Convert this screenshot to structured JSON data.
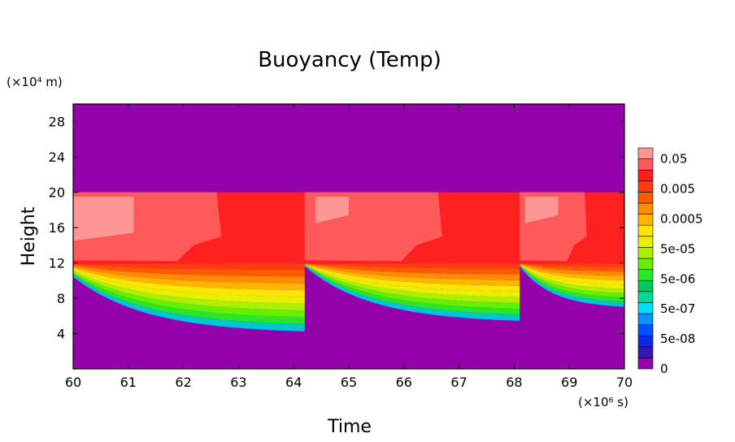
{
  "chart_data": {
    "type": "heatmap",
    "title": "Buoyancy (Temp)",
    "xlabel": "Time",
    "ylabel": "Height",
    "x_unit": "(×10⁶ s)",
    "y_unit": "(×10⁴ m)",
    "xlim": [
      60,
      70
    ],
    "ylim": [
      0,
      30
    ],
    "x_ticks": [
      "60",
      "61",
      "62",
      "63",
      "64",
      "65",
      "66",
      "67",
      "68",
      "69",
      "70"
    ],
    "y_ticks": [
      "4",
      "8",
      "12",
      "16",
      "20",
      "24",
      "28"
    ],
    "colorbar": {
      "levels": [
        "0",
        "5e-08",
        "5e-07",
        "5e-06",
        "5e-05",
        "0.0005",
        "0.005",
        "0.05"
      ],
      "colors": [
        "#9400aa",
        "#3218b4",
        "#0a28e6",
        "#0050ff",
        "#0096ff",
        "#00dcff",
        "#00dc96",
        "#00c85a",
        "#28e628",
        "#64f000",
        "#aaf000",
        "#e6f000",
        "#ffe600",
        "#ffb400",
        "#ff8c00",
        "#ff5a00",
        "#ff3c14",
        "#ff1e1e",
        "#ff5a5a",
        "#ff9696"
      ]
    },
    "background_color": "#9400aa",
    "cycles": [
      {
        "start": 60.0,
        "end": 64.2,
        "top": 20,
        "bottom_start": 10.5,
        "bottom_end": 4.3,
        "pink_region": {
          "x": [
            60.0,
            61.1
          ],
          "y": [
            14.5,
            19.5
          ]
        }
      },
      {
        "start": 64.2,
        "end": 68.1,
        "top": 20,
        "bottom_start": 11.7,
        "bottom_end": 5.5,
        "pink_region": {
          "x": [
            64.4,
            65.0
          ],
          "y": [
            16.5,
            19.5
          ]
        }
      },
      {
        "start": 68.1,
        "end": 70.0,
        "top": 20,
        "bottom_start": 11.7,
        "bottom_end": 7.1,
        "pink_region": {
          "x": [
            68.2,
            68.8
          ],
          "y": [
            16.5,
            19.5
          ]
        }
      }
    ]
  }
}
